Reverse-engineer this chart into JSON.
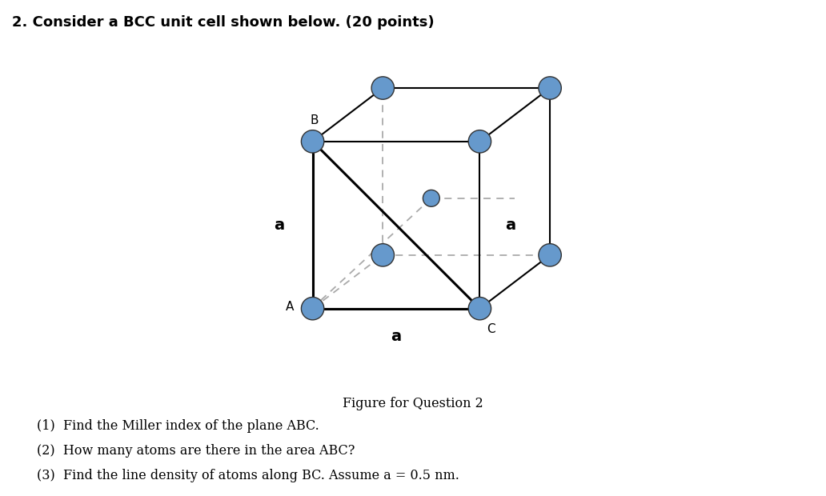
{
  "title_text": "2. Consider a BCC unit cell shown below. (20 points)",
  "figure_caption": "Figure for Question 2",
  "atom_color": "#6699cc",
  "atom_edge_color": "#333333",
  "bg_color": "#ffffff",
  "q1": "(1)  Find the Miller index of the plane ABC.",
  "q2": "(2)  How many atoms are there in the area ABC?",
  "q3": "(3)  Find the line density of atoms along BC. Assume a = 0.5 nm."
}
